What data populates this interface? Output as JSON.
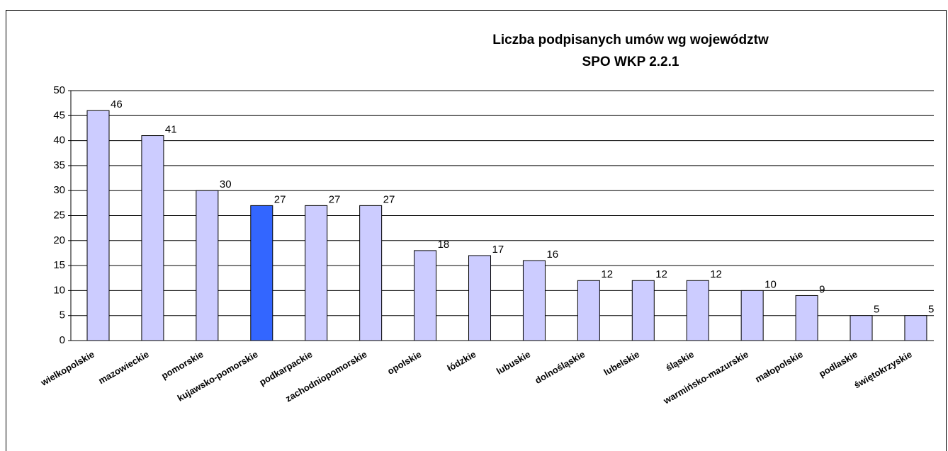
{
  "chart_data": {
    "type": "bar",
    "title": "Liczba podpisanych umów wg województw",
    "subtitle": "SPO WKP 2.2.1",
    "categories": [
      "wielkopolskie",
      "mazowieckie",
      "pomorskie",
      "kujawsko-pomorskie",
      "podkarpackie",
      "zachodniopomorskie",
      "opolskie",
      "łódzkie",
      "lubuskie",
      "dolnośląskie",
      "lubelskie",
      "śląskie",
      "warmińsko-mazurskie",
      "małopolskie",
      "podlaskie",
      "świętokrzyskie"
    ],
    "values": [
      46,
      41,
      30,
      27,
      27,
      27,
      18,
      17,
      16,
      12,
      12,
      12,
      10,
      9,
      5,
      5
    ],
    "colors": [
      "#ccccff",
      "#ccccff",
      "#ccccff",
      "#3366ff",
      "#ccccff",
      "#ccccff",
      "#ccccff",
      "#ccccff",
      "#ccccff",
      "#ccccff",
      "#ccccff",
      "#ccccff",
      "#ccccff",
      "#ccccff",
      "#ccccff",
      "#ccccff"
    ],
    "ylim": [
      0,
      50
    ],
    "yticks": [
      0,
      5,
      10,
      15,
      20,
      25,
      30,
      35,
      40,
      45,
      50
    ],
    "grid": true
  }
}
